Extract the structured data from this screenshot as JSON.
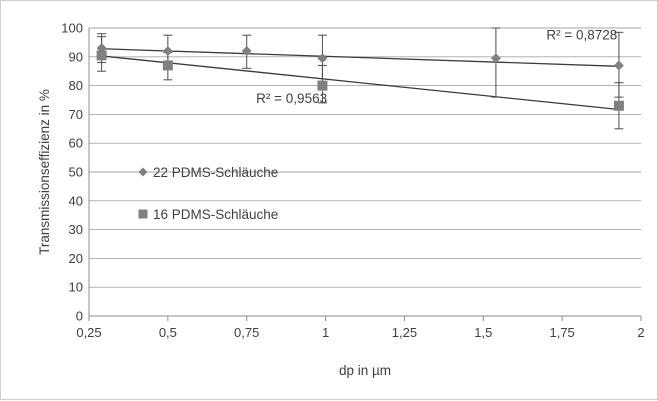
{
  "chart_data": {
    "type": "scatter",
    "title": "",
    "xlabel": "dp in µm",
    "ylabel": "Transmissionseffizienz in %",
    "xlim": [
      0.25,
      2
    ],
    "ylim": [
      0,
      100
    ],
    "x_ticks": [
      0.25,
      0.5,
      0.75,
      1,
      1.25,
      1.5,
      1.75,
      2
    ],
    "x_tick_labels": [
      "0,25",
      "0,5",
      "0,75",
      "1",
      "1,25",
      "1,5",
      "1,75",
      "2"
    ],
    "y_ticks": [
      0,
      10,
      20,
      30,
      40,
      50,
      60,
      70,
      80,
      90,
      100
    ],
    "y_tick_labels": [
      "0",
      "10",
      "20",
      "30",
      "40",
      "50",
      "60",
      "70",
      "80",
      "90",
      "100"
    ],
    "grid": "horizontal",
    "legend_position": "left-middle",
    "series": [
      {
        "name": "22 PDMS-Schläuche",
        "marker": "diamond",
        "color": "#808080",
        "points": [
          {
            "x": 0.29,
            "y": 93,
            "err_low": 88,
            "err_high": 98
          },
          {
            "x": 0.5,
            "y": 92,
            "err_low": 86,
            "err_high": 97.5
          },
          {
            "x": 0.75,
            "y": 92,
            "err_low": 86,
            "err_high": 97.5
          },
          {
            "x": 0.99,
            "y": 89.5,
            "err_low": 81,
            "err_high": 97.5
          },
          {
            "x": 1.54,
            "y": 89.5,
            "err_low": 76,
            "err_high": 100
          },
          {
            "x": 1.93,
            "y": 87,
            "err_low": 76,
            "err_high": 98.5
          }
        ],
        "trendline": {
          "x": [
            0.29,
            1.93
          ],
          "y": [
            92.8,
            86.7
          ],
          "r2_label": "R² = 0,8728",
          "label_x": 1.7,
          "label_y": 96
        }
      },
      {
        "name": "16 PDMS-Schläuche",
        "marker": "square",
        "color": "#808080",
        "points": [
          {
            "x": 0.29,
            "y": 90.5,
            "err_low": 85,
            "err_high": 97
          },
          {
            "x": 0.5,
            "y": 87,
            "err_low": 82,
            "err_high": 91.5
          },
          {
            "x": 0.99,
            "y": 80,
            "err_low": 74,
            "err_high": 87
          },
          {
            "x": 1.93,
            "y": 73,
            "err_low": 65,
            "err_high": 81
          }
        ],
        "trendline": {
          "x": [
            0.29,
            1.93
          ],
          "y": [
            90.3,
            71.7
          ],
          "r2_label": "R² = 0,9563",
          "label_x": 0.78,
          "label_y": 74
        }
      }
    ]
  }
}
